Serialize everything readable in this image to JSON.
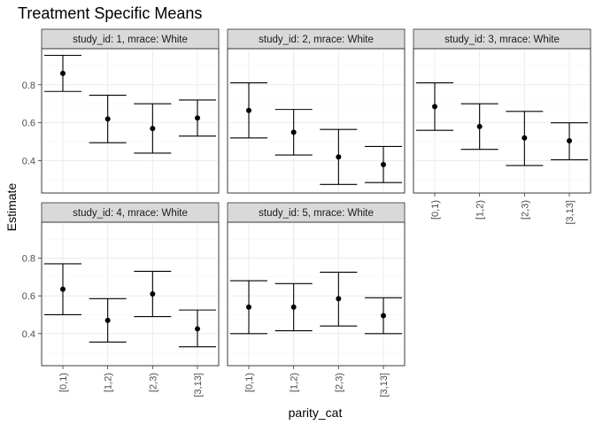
{
  "chart_data": {
    "type": "scatter",
    "subtype": "pointrange-errorbar-facets",
    "title": "Treatment Specific Means",
    "xlabel": "parity_cat",
    "ylabel": "Estimate",
    "categories": [
      "[0,1)",
      "[1,2)",
      "[2,3)",
      "[3,13]"
    ],
    "ylim": [
      0.23,
      0.99
    ],
    "yticks": [
      0.4,
      0.6,
      0.8
    ],
    "yticklabels": [
      "0.4",
      "0.6",
      "0.8"
    ],
    "grid": true,
    "facets": [
      {
        "label": "study_id: 1, mrace: White",
        "estimate": [
          0.86,
          0.62,
          0.57,
          0.625
        ],
        "lower": [
          0.765,
          0.495,
          0.44,
          0.53
        ],
        "upper": [
          0.955,
          0.745,
          0.7,
          0.72
        ]
      },
      {
        "label": "study_id: 2, mrace: White",
        "estimate": [
          0.665,
          0.55,
          0.42,
          0.38
        ],
        "lower": [
          0.52,
          0.43,
          0.275,
          0.285
        ],
        "upper": [
          0.81,
          0.67,
          0.565,
          0.475
        ]
      },
      {
        "label": "study_id: 3, mrace: White",
        "estimate": [
          0.685,
          0.58,
          0.52,
          0.505
        ],
        "lower": [
          0.56,
          0.46,
          0.375,
          0.405
        ],
        "upper": [
          0.81,
          0.7,
          0.66,
          0.6
        ]
      },
      {
        "label": "study_id: 4, mrace: White",
        "estimate": [
          0.635,
          0.47,
          0.61,
          0.425
        ],
        "lower": [
          0.5,
          0.355,
          0.49,
          0.33
        ],
        "upper": [
          0.77,
          0.585,
          0.73,
          0.525
        ]
      },
      {
        "label": "study_id: 5, mrace: White",
        "estimate": [
          0.54,
          0.54,
          0.585,
          0.495
        ],
        "lower": [
          0.4,
          0.415,
          0.44,
          0.4
        ],
        "upper": [
          0.68,
          0.665,
          0.725,
          0.59
        ]
      }
    ]
  }
}
